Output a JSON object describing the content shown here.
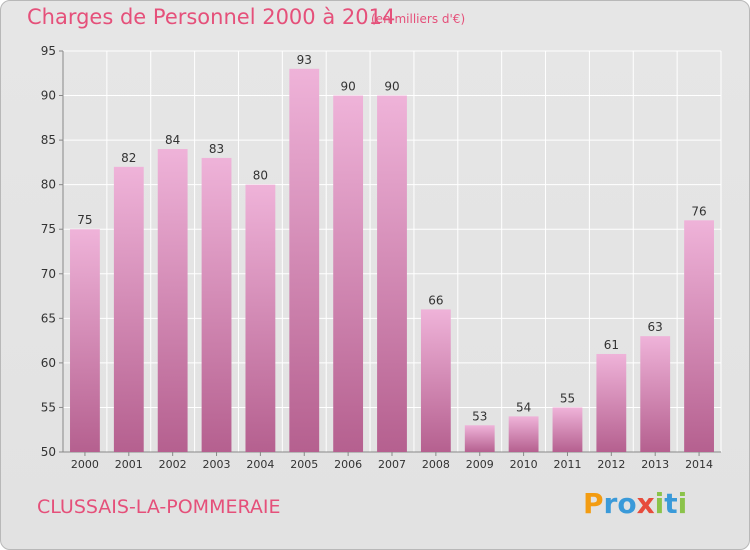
{
  "title": "Charges de Personnel 2000 à 2014",
  "subtitle": "(en milliers d'€)",
  "town": "CLUSSAIS-LA-POMMERAIE",
  "logo": {
    "letters": [
      "P",
      "r",
      "o",
      "x",
      "i",
      "t",
      "i"
    ],
    "colors": [
      "#f39c12",
      "#3a9ad9",
      "#3a9ad9",
      "#e74c3c",
      "#8bc34a",
      "#3a9ad9",
      "#8bc34a"
    ]
  },
  "colors": {
    "title": "#e5507a",
    "bar_top": "#efb3d9",
    "bar_bottom": "#b5608f",
    "grid": "#ffffff",
    "axis_text": "#333333"
  },
  "chart_data": {
    "type": "bar",
    "title": "Charges de Personnel 2000 à 2014",
    "subtitle": "(en milliers d'€)",
    "categories": [
      "2000",
      "2001",
      "2002",
      "2003",
      "2004",
      "2005",
      "2006",
      "2007",
      "2008",
      "2009",
      "2010",
      "2011",
      "2012",
      "2013",
      "2014"
    ],
    "values": [
      75,
      82,
      84,
      83,
      80,
      93,
      90,
      90,
      66,
      53,
      54,
      55,
      61,
      63,
      76
    ],
    "ylim": [
      50,
      95
    ],
    "yticks": [
      50,
      55,
      60,
      65,
      70,
      75,
      80,
      85,
      90,
      95
    ],
    "grid": true,
    "data_labels": true
  }
}
